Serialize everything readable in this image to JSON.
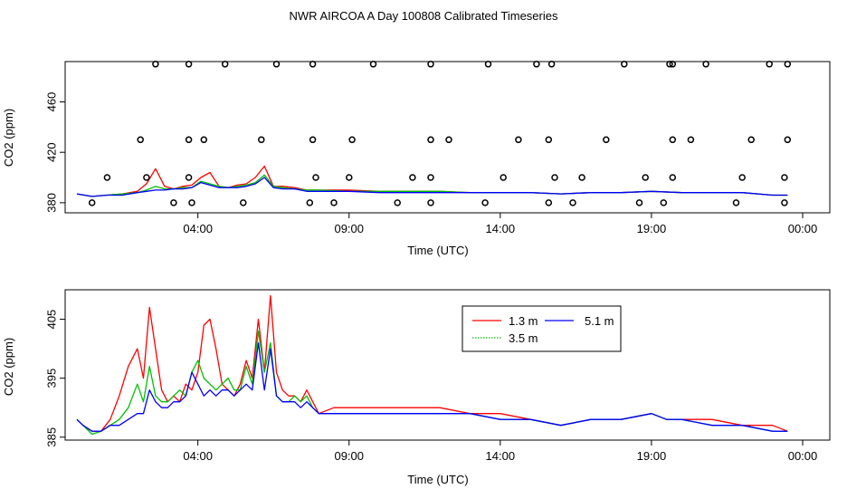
{
  "title": "NWR AIRCOA A  Day 100808  Calibrated Timeseries",
  "colors": {
    "series_1": "#ff0000",
    "series_2": "#00c000",
    "series_3": "#0000ff",
    "axis": "#000000",
    "background": "#ffffff"
  },
  "chart_data": [
    {
      "type": "line",
      "panel": "top",
      "xlabel": "Time (UTC)",
      "ylabel": "CO2 (ppm)",
      "x_units": "hours since 00:00 UTC",
      "xlim": [
        0,
        24.5
      ],
      "ylim": [
        372,
        492
      ],
      "xticks": [
        {
          "x": 4,
          "label": "04:00"
        },
        {
          "x": 9,
          "label": "09:00"
        },
        {
          "x": 14,
          "label": "14:00"
        },
        {
          "x": 19,
          "label": "19:00"
        },
        {
          "x": 24,
          "label": "00:00"
        }
      ],
      "yticks": [
        {
          "y": 380,
          "label": "380"
        },
        {
          "y": 420,
          "label": "420"
        },
        {
          "y": 460,
          "label": "460"
        }
      ],
      "series": [
        {
          "name": "1.3 m",
          "color": "#ff0000",
          "x": [
            0,
            0.5,
            1,
            1.5,
            2,
            2.3,
            2.6,
            2.9,
            3.2,
            3.5,
            3.8,
            4.1,
            4.4,
            4.7,
            5,
            5.3,
            5.6,
            5.9,
            6.2,
            6.5,
            6.8,
            7.2,
            7.6,
            8,
            9,
            10,
            11,
            12,
            13,
            14,
            15,
            16,
            17,
            18,
            19,
            20,
            21,
            22,
            23,
            23.5
          ],
          "y": [
            387,
            385,
            386,
            387,
            389,
            395,
            407,
            393,
            391,
            393,
            394,
            400,
            404,
            393,
            392,
            394,
            395,
            400,
            409,
            393,
            393,
            392,
            390,
            390,
            390,
            389,
            389,
            389,
            388,
            388,
            388,
            387,
            388,
            388,
            389,
            388,
            388,
            388,
            386,
            386
          ]
        },
        {
          "name": "3.5 m",
          "color": "#00c000",
          "x": [
            0,
            0.5,
            1,
            1.5,
            2,
            2.3,
            2.6,
            2.9,
            3.2,
            3.5,
            3.8,
            4.1,
            4.4,
            4.7,
            5,
            5.3,
            5.6,
            5.9,
            6.2,
            6.5,
            6.8,
            7.2,
            7.6,
            8,
            9,
            10,
            11,
            12,
            13,
            14,
            15,
            16,
            17,
            18,
            19,
            20,
            21,
            22,
            23,
            23.5
          ],
          "y": [
            387,
            385,
            386,
            387,
            388,
            390,
            393,
            391,
            391,
            392,
            392,
            397,
            395,
            393,
            392,
            393,
            394,
            396,
            402,
            393,
            392,
            391,
            390,
            390,
            389,
            389,
            389,
            389,
            388,
            388,
            388,
            387,
            388,
            388,
            389,
            388,
            388,
            388,
            386,
            386
          ]
        },
        {
          "name": "5.1 m",
          "color": "#0000ff",
          "x": [
            0,
            0.5,
            1,
            1.5,
            2,
            2.3,
            2.6,
            2.9,
            3.2,
            3.5,
            3.8,
            4.1,
            4.4,
            4.7,
            5,
            5.3,
            5.6,
            5.9,
            6.2,
            6.5,
            6.8,
            7.2,
            7.6,
            8,
            9,
            10,
            11,
            12,
            13,
            14,
            15,
            16,
            17,
            18,
            19,
            20,
            21,
            22,
            23,
            23.5
          ],
          "y": [
            387,
            385,
            386,
            386,
            388,
            389,
            390,
            390,
            391,
            391,
            392,
            396,
            394,
            392,
            392,
            392,
            393,
            395,
            400,
            392,
            391,
            391,
            389,
            389,
            389,
            388,
            388,
            388,
            388,
            388,
            388,
            387,
            388,
            388,
            389,
            388,
            388,
            388,
            386,
            386
          ]
        }
      ],
      "scatter": {
        "name": "calibration",
        "x": [
          0.5,
          2.1,
          2.6,
          1.0,
          3.2,
          2.3,
          3.8,
          3.7,
          3.7,
          3.7,
          4.9,
          4.2,
          5.5,
          6.1,
          6.6,
          7.7,
          7.8,
          7.9,
          7.8,
          8.5,
          9.0,
          9.1,
          10.6,
          9.8,
          11.1,
          11.7,
          11.7,
          11.7,
          11.7,
          12.3,
          13.5,
          13.6,
          14.1,
          14.6,
          15.2,
          15.6,
          15.8,
          15.6,
          15.7,
          16.7,
          16.4,
          17.5,
          18.1,
          18.6,
          18.8,
          19.4,
          19.7,
          19.7,
          19.7,
          19.6,
          20.3,
          20.8,
          21.8,
          22.0,
          22.3,
          22.9,
          23.4,
          23.4,
          23.5,
          23.5
        ],
        "y": [
          380,
          430,
          490,
          400,
          380,
          400,
          380,
          430,
          490,
          400,
          490,
          430,
          380,
          430,
          490,
          380,
          490,
          400,
          430,
          380,
          400,
          430,
          380,
          490,
          400,
          380,
          400,
          430,
          490,
          430,
          380,
          490,
          400,
          430,
          490,
          380,
          400,
          430,
          490,
          400,
          380,
          430,
          490,
          380,
          400,
          380,
          490,
          400,
          430,
          490,
          430,
          490,
          380,
          400,
          430,
          490,
          380,
          400,
          430,
          490
        ]
      },
      "legend": null
    },
    {
      "type": "line",
      "panel": "bottom",
      "xlabel": "Time (UTC)",
      "ylabel": "CO2 (ppm)",
      "x_units": "hours since 00:00 UTC",
      "xlim": [
        0,
        24.5
      ],
      "ylim": [
        384.5,
        410
      ],
      "xticks": [
        {
          "x": 4,
          "label": "04:00"
        },
        {
          "x": 9,
          "label": "09:00"
        },
        {
          "x": 14,
          "label": "14:00"
        },
        {
          "x": 19,
          "label": "19:00"
        },
        {
          "x": 24,
          "label": "00:00"
        }
      ],
      "yticks": [
        {
          "y": 385,
          "label": "385"
        },
        {
          "y": 395,
          "label": "395"
        },
        {
          "y": 405,
          "label": "405"
        }
      ],
      "series": [
        {
          "name": "1.3 m",
          "color": "#ff0000",
          "x": [
            0,
            0.2,
            0.5,
            0.8,
            1.1,
            1.4,
            1.7,
            2.0,
            2.2,
            2.4,
            2.6,
            2.8,
            3.0,
            3.2,
            3.4,
            3.6,
            3.8,
            4.0,
            4.2,
            4.4,
            4.6,
            4.8,
            5.0,
            5.2,
            5.4,
            5.6,
            5.8,
            6.0,
            6.2,
            6.4,
            6.6,
            6.8,
            7.0,
            7.2,
            7.4,
            7.6,
            7.8,
            8.0,
            8.5,
            9.0,
            9.5,
            10,
            11,
            12,
            13,
            14,
            15,
            16,
            17,
            18,
            19,
            19.5,
            20,
            21,
            22,
            23,
            23.5
          ],
          "y": [
            388,
            387,
            386,
            386,
            388,
            392,
            397,
            400,
            395,
            407,
            400,
            393,
            391,
            392,
            391,
            394,
            393,
            396,
            404,
            405,
            400,
            394,
            393,
            392,
            394,
            398,
            395,
            405,
            396,
            409,
            396,
            393,
            392,
            392,
            391,
            393,
            391,
            389,
            390,
            390,
            390,
            390,
            390,
            390,
            389,
            389,
            388,
            387,
            388,
            388,
            389,
            388,
            388,
            388,
            387,
            387,
            386
          ]
        },
        {
          "name": "3.5 m",
          "color": "#00c000",
          "x": [
            0,
            0.2,
            0.5,
            0.8,
            1.1,
            1.4,
            1.7,
            2.0,
            2.2,
            2.4,
            2.6,
            2.8,
            3.0,
            3.2,
            3.4,
            3.6,
            3.8,
            4.0,
            4.2,
            4.4,
            4.6,
            4.8,
            5.0,
            5.2,
            5.4,
            5.6,
            5.8,
            6.0,
            6.2,
            6.4,
            6.6,
            6.8,
            7.0,
            7.2,
            7.4,
            7.6,
            7.8,
            8.0,
            8.5,
            9.0,
            9.5,
            10,
            11,
            12,
            13,
            14,
            15,
            16,
            17,
            18,
            19,
            19.5,
            20,
            21,
            22,
            23,
            23.5
          ],
          "y": [
            388,
            387,
            385.5,
            386,
            387,
            388,
            390,
            394,
            391,
            397,
            392,
            391,
            391,
            392,
            393,
            392,
            396,
            398,
            395,
            394,
            393,
            394,
            395,
            393,
            393,
            397,
            394,
            403,
            396,
            401,
            392,
            391,
            391,
            392,
            391,
            392,
            390,
            389,
            389,
            389,
            389,
            389,
            389,
            389,
            389,
            388,
            388,
            387,
            388,
            388,
            389,
            388,
            388,
            387,
            387,
            386,
            386
          ]
        },
        {
          "name": "5.1 m",
          "color": "#0000ff",
          "x": [
            0,
            0.2,
            0.5,
            0.8,
            1.1,
            1.4,
            1.7,
            2.0,
            2.2,
            2.4,
            2.6,
            2.8,
            3.0,
            3.2,
            3.4,
            3.6,
            3.8,
            4.0,
            4.2,
            4.4,
            4.6,
            4.8,
            5.0,
            5.2,
            5.4,
            5.6,
            5.8,
            6.0,
            6.2,
            6.4,
            6.6,
            6.8,
            7.0,
            7.2,
            7.4,
            7.6,
            7.8,
            8.0,
            8.5,
            9.0,
            9.5,
            10,
            11,
            12,
            13,
            14,
            15,
            16,
            17,
            18,
            19,
            19.5,
            20,
            21,
            22,
            23,
            23.5
          ],
          "y": [
            388,
            387,
            386,
            386,
            387,
            387,
            388,
            389,
            389,
            393,
            391,
            390,
            390,
            391,
            391,
            392,
            396,
            394,
            392,
            393,
            392,
            393,
            393,
            392,
            393,
            394,
            393,
            401,
            393,
            400,
            392,
            391,
            391,
            391,
            390,
            391,
            390,
            389,
            389,
            389,
            389,
            389,
            389,
            389,
            389,
            388,
            388,
            387,
            388,
            388,
            389,
            388,
            388,
            387,
            387,
            386,
            386
          ]
        }
      ],
      "legend": {
        "placement": "top-center",
        "entries": [
          "1.3 m",
          "3.5 m",
          "5.1 m"
        ]
      }
    }
  ]
}
